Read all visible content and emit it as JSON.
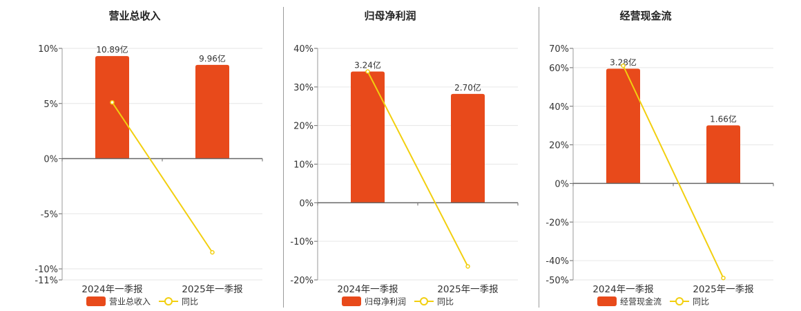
{
  "colors": {
    "bar": "#E84A1B",
    "line": "#F2CF0F",
    "axis": "#666666",
    "grid": "#E6E6E6",
    "text": "#333333"
  },
  "chart_data": [
    {
      "type": "bar",
      "title": "营业总收入",
      "categories": [
        "2024年一季报",
        "2025年一季报"
      ],
      "series": [
        {
          "name": "营业总收入",
          "type": "bar",
          "labels": [
            "10.89亿",
            "9.96亿"
          ],
          "values": [
            9.3,
            8.5
          ]
        },
        {
          "name": "同比",
          "type": "line",
          "values": [
            5.1,
            -8.5
          ]
        }
      ],
      "yticks": [
        "10%",
        "5%",
        "0%",
        "-5%",
        "-10%",
        "-11%"
      ],
      "ytick_values": [
        10,
        5,
        0,
        -5,
        -10,
        -11
      ],
      "ylim": [
        -11,
        10
      ],
      "grid": true,
      "legend": "bottom"
    },
    {
      "type": "bar",
      "title": "归母净利润",
      "categories": [
        "2024年一季报",
        "2025年一季报"
      ],
      "series": [
        {
          "name": "归母净利润",
          "type": "bar",
          "labels": [
            "3.24亿",
            "2.70亿"
          ],
          "values": [
            34,
            28.2
          ]
        },
        {
          "name": "同比",
          "type": "line",
          "values": [
            34,
            -16.5
          ]
        }
      ],
      "yticks": [
        "40%",
        "30%",
        "20%",
        "10%",
        "0%",
        "-10%",
        "-20%"
      ],
      "ytick_values": [
        40,
        30,
        20,
        10,
        0,
        -10,
        -20
      ],
      "ylim": [
        -20,
        40
      ],
      "grid": true,
      "legend": "bottom"
    },
    {
      "type": "bar",
      "title": "经营现金流",
      "categories": [
        "2024年一季报",
        "2025年一季报"
      ],
      "series": [
        {
          "name": "经营现金流",
          "type": "bar",
          "labels": [
            "3.28亿",
            "1.66亿"
          ],
          "values": [
            59.5,
            30.1
          ]
        },
        {
          "name": "同比",
          "type": "line",
          "values": [
            61,
            -49
          ]
        }
      ],
      "yticks": [
        "70%",
        "60%",
        "40%",
        "20%",
        "0%",
        "-20%",
        "-40%",
        "-50%"
      ],
      "ytick_values": [
        70,
        60,
        40,
        20,
        0,
        -20,
        -40,
        -50
      ],
      "ylim": [
        -50,
        70
      ],
      "grid": true,
      "legend": "bottom"
    }
  ]
}
